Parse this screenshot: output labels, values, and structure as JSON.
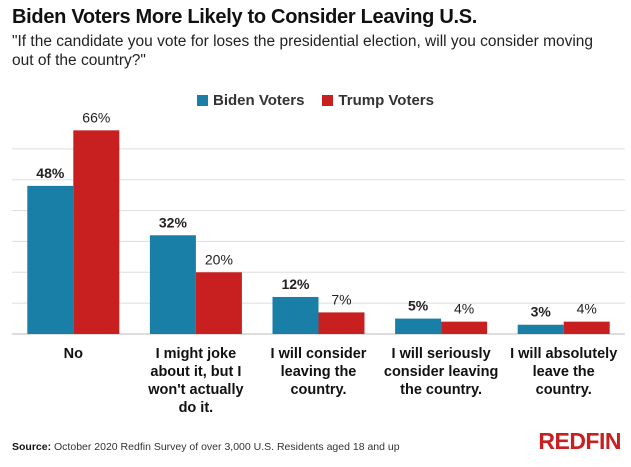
{
  "title": "Biden Voters More Likely to Consider Leaving U.S.",
  "subtitle": "\"If the candidate you vote for loses the presidential election, will you consider moving out of the country?\"",
  "footer": {
    "source_label": "Source:",
    "source_text": "October 2020 Redfin Survey of over 3,000 U.S. Residents aged 18 and up"
  },
  "logo_text": "REDFIN",
  "colors": {
    "biden": "#1a7fa6",
    "trump": "#c82021",
    "grid": "#dddddd"
  },
  "chart_data": {
    "type": "bar",
    "categories": [
      "No",
      "I might joke about it, but I won't actually do it.",
      "I will consider leaving the country.",
      "I will seriously consider leaving the country.",
      "I will absolutely leave the country."
    ],
    "category_lines": [
      [
        "No"
      ],
      [
        "I might joke",
        "about it, but I",
        "won't actually",
        "do it."
      ],
      [
        "I will consider",
        "leaving the",
        "country."
      ],
      [
        "I will seriously",
        "consider leaving",
        "the country."
      ],
      [
        "I will absolutely",
        "leave the",
        "country."
      ]
    ],
    "series": [
      {
        "name": "Biden Voters",
        "values": [
          48,
          32,
          12,
          5,
          3
        ],
        "labels": [
          "48%",
          "32%",
          "12%",
          "5%",
          "3%"
        ]
      },
      {
        "name": "Trump Voters",
        "values": [
          66,
          20,
          7,
          4,
          4
        ],
        "labels": [
          "66%",
          "20%",
          "7%",
          "4%",
          "4%"
        ]
      }
    ],
    "ylim": [
      0,
      70
    ],
    "grid": true,
    "legend_position": "top-center"
  }
}
